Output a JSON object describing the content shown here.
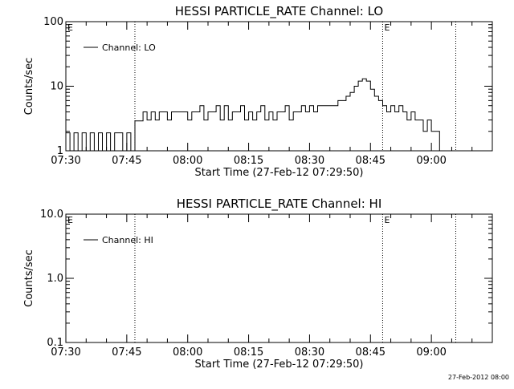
{
  "footer": {
    "timestamp": "27-Feb-2012 08:00"
  },
  "chart_data": [
    {
      "type": "line",
      "title": "HESSI PARTICLE_RATE Channel: LO",
      "xlabel": "Start Time (27-Feb-12 07:29:50)",
      "ylabel": "Counts/sec",
      "yscale": "log",
      "ylim": [
        1,
        100
      ],
      "xlim": [
        "07:30",
        "09:15"
      ],
      "ytick_labels": [
        "1",
        "10",
        "100"
      ],
      "xtick_labels": [
        "07:30",
        "07:45",
        "08:00",
        "08:15",
        "08:30",
        "08:45",
        "09:00"
      ],
      "legend": {
        "position": "top-left",
        "entries": [
          "Channel: LO"
        ]
      },
      "vlines": [
        "07:47",
        "08:48",
        "09:06"
      ],
      "flags": [
        {
          "label": "E",
          "at": "07:30"
        },
        {
          "label": "E",
          "at": "08:48"
        }
      ],
      "series": [
        {
          "name": "Channel: LO",
          "x": [
            "07:30",
            "07:31",
            "07:32",
            "07:33",
            "07:34",
            "07:35",
            "07:36",
            "07:37",
            "07:38",
            "07:39",
            "07:40",
            "07:41",
            "07:42",
            "07:43",
            "07:44",
            "07:45",
            "07:46",
            "07:47",
            "07:48",
            "07:49",
            "07:50",
            "07:51",
            "07:52",
            "07:53",
            "07:54",
            "07:55",
            "07:56",
            "07:57",
            "07:58",
            "07:59",
            "08:00",
            "08:01",
            "08:02",
            "08:03",
            "08:04",
            "08:05",
            "08:06",
            "08:07",
            "08:08",
            "08:09",
            "08:10",
            "08:11",
            "08:12",
            "08:13",
            "08:14",
            "08:15",
            "08:16",
            "08:17",
            "08:18",
            "08:19",
            "08:20",
            "08:21",
            "08:22",
            "08:23",
            "08:24",
            "08:25",
            "08:26",
            "08:27",
            "08:28",
            "08:29",
            "08:30",
            "08:31",
            "08:32",
            "08:33",
            "08:34",
            "08:35",
            "08:36",
            "08:37",
            "08:38",
            "08:39",
            "08:40",
            "08:41",
            "08:42",
            "08:43",
            "08:44",
            "08:45",
            "08:46",
            "08:47",
            "08:48",
            "08:49",
            "08:50",
            "08:51",
            "08:52",
            "08:53",
            "08:54",
            "08:55",
            "08:56",
            "08:57",
            "08:58",
            "08:59",
            "09:00",
            "09:01",
            "09:02",
            "09:03",
            "09:04",
            "09:05",
            "09:06"
          ],
          "y": [
            1.9,
            1,
            1.9,
            1,
            1.9,
            1,
            1.9,
            1,
            1.9,
            1,
            1.9,
            1,
            1.9,
            1.9,
            1,
            1.9,
            1,
            2.9,
            2.9,
            4,
            3,
            4,
            3,
            4,
            4,
            3,
            4,
            4,
            4,
            4,
            3,
            4,
            4,
            5,
            3,
            4,
            4,
            5,
            3,
            5,
            3,
            4,
            4,
            5,
            3,
            4,
            3,
            4,
            5,
            3,
            4,
            3,
            4,
            4,
            5,
            3,
            4,
            4,
            5,
            4,
            5,
            4,
            5,
            5,
            5,
            5,
            5,
            6,
            6,
            7,
            8,
            10,
            12,
            13,
            12,
            9,
            7,
            6,
            5,
            4,
            5,
            4,
            5,
            4,
            3,
            4,
            3,
            3,
            2,
            3,
            2,
            2,
            1,
            1,
            1,
            1,
            1
          ]
        }
      ]
    },
    {
      "type": "line",
      "title": "HESSI PARTICLE_RATE Channel: HI",
      "xlabel": "Start Time (27-Feb-12 07:29:50)",
      "ylabel": "Counts/sec",
      "yscale": "log",
      "ylim": [
        0.1,
        10
      ],
      "xlim": [
        "07:30",
        "09:15"
      ],
      "ytick_labels": [
        "0.1",
        "1.0",
        "10.0"
      ],
      "xtick_labels": [
        "07:30",
        "07:45",
        "08:00",
        "08:15",
        "08:30",
        "08:45",
        "09:00"
      ],
      "legend": {
        "position": "top-left",
        "entries": [
          "Channel: HI"
        ]
      },
      "vlines": [
        "07:47",
        "08:48",
        "09:06"
      ],
      "flags": [
        {
          "label": "E",
          "at": "07:30"
        },
        {
          "label": "E",
          "at": "08:48"
        }
      ],
      "series": [
        {
          "name": "Channel: HI",
          "x": [],
          "y": []
        }
      ]
    }
  ]
}
